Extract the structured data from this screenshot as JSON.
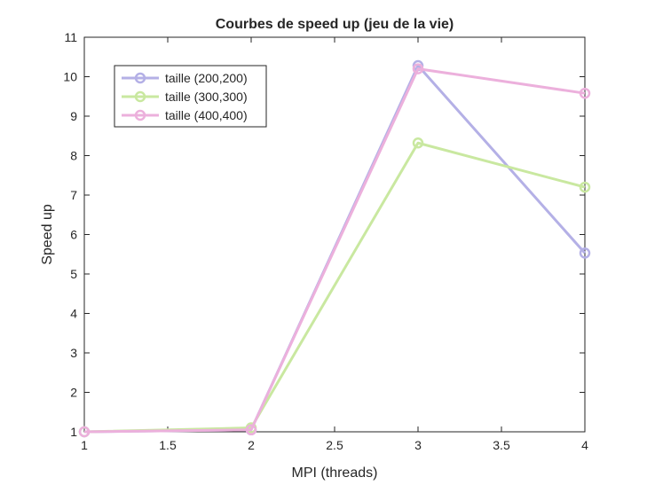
{
  "chart_data": {
    "type": "line",
    "title": "Courbes de speed up (jeu de la vie)",
    "xlabel": "MPI (threads)",
    "ylabel": "Speed up",
    "xlim": [
      1,
      4
    ],
    "ylim": [
      1,
      11
    ],
    "xticks": [
      1,
      1.5,
      2,
      2.5,
      3,
      3.5,
      4
    ],
    "xtick_labels": [
      "1",
      "1.5",
      "2",
      "2.5",
      "3",
      "3.5",
      "4"
    ],
    "yticks": [
      1,
      2,
      3,
      4,
      5,
      6,
      7,
      8,
      9,
      10,
      11
    ],
    "ytick_labels": [
      "1",
      "2",
      "3",
      "4",
      "5",
      "6",
      "7",
      "8",
      "9",
      "10",
      "11"
    ],
    "grid": false,
    "legend_position": "top-left",
    "x": [
      1,
      2,
      3,
      4
    ],
    "series": [
      {
        "name": "taille (200,200)",
        "values": [
          1,
          1.05,
          10.28,
          5.53
        ],
        "color": "#b4b0e6"
      },
      {
        "name": "taille (300,300)",
        "values": [
          1,
          1.1,
          8.32,
          7.2
        ],
        "color": "#c9e8a0"
      },
      {
        "name": "taille (400,400)",
        "values": [
          1,
          1.05,
          10.2,
          9.58
        ],
        "color": "#ecb0dc"
      }
    ]
  }
}
